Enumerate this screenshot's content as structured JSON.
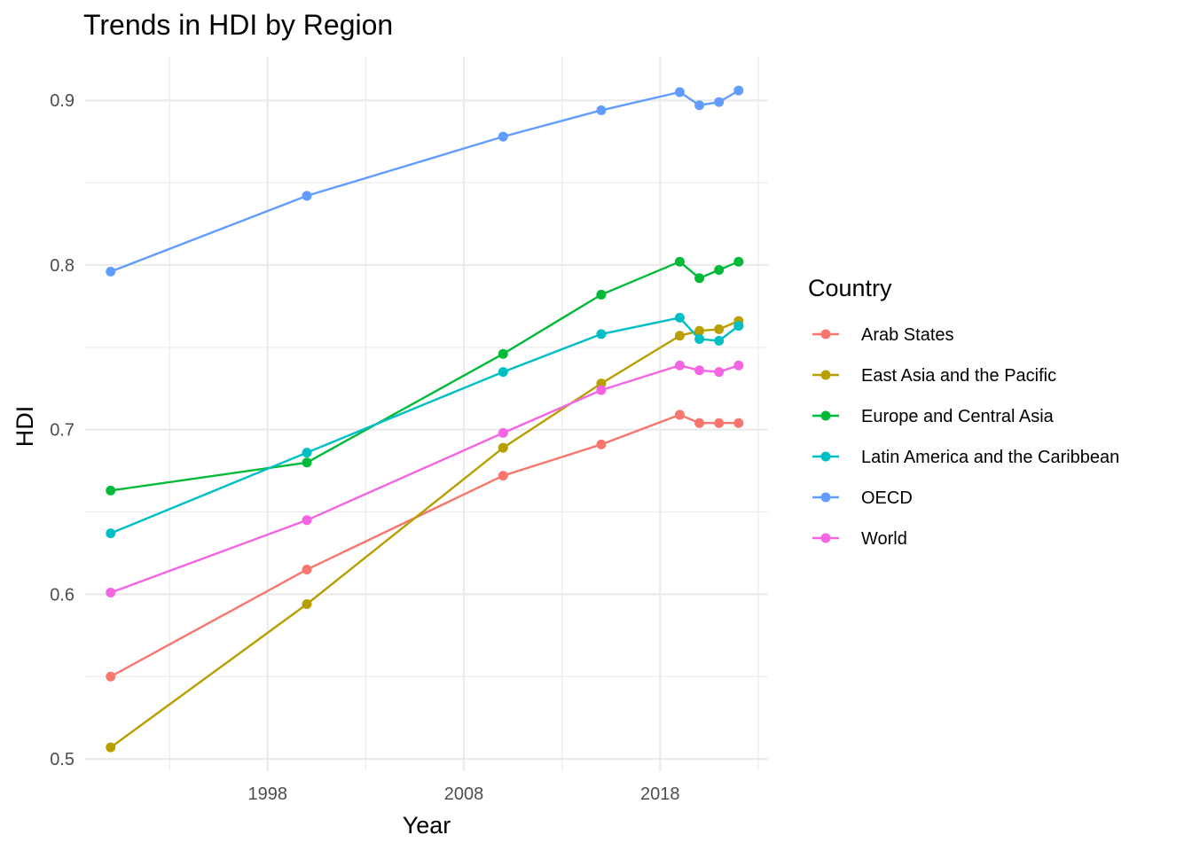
{
  "chart_data": {
    "type": "line",
    "title": "Trends in HDI by Region",
    "xlabel": "Year",
    "ylabel": "HDI",
    "x": [
      1990,
      2000,
      2010,
      2015,
      2019,
      2020,
      2021,
      2022
    ],
    "xlim": [
      1988.7,
      2023.5
    ],
    "ylim": [
      0.4925,
      0.9265
    ],
    "x_ticks": [
      1998,
      2008,
      2018
    ],
    "y_ticks": [
      0.5,
      0.6,
      0.7,
      0.8,
      0.9
    ],
    "x_tick_labels": [
      "1998",
      "2008",
      "2018"
    ],
    "y_tick_labels": [
      "0.5",
      "0.6",
      "0.7",
      "0.8",
      "0.9"
    ],
    "grid": true,
    "legend_title": "Country",
    "legend_position": "right",
    "series": [
      {
        "name": "Arab States",
        "color": "#F8766D",
        "values": [
          0.55,
          0.615,
          0.672,
          0.691,
          0.709,
          0.704,
          0.704,
          0.704
        ]
      },
      {
        "name": "East Asia and the Pacific",
        "color": "#B79F00",
        "values": [
          0.507,
          0.594,
          0.689,
          0.728,
          0.757,
          0.76,
          0.761,
          0.766
        ]
      },
      {
        "name": "Europe and Central Asia",
        "color": "#00BA38",
        "values": [
          0.663,
          0.68,
          0.746,
          0.782,
          0.802,
          0.792,
          0.797,
          0.802
        ]
      },
      {
        "name": "Latin America and the Caribbean",
        "color": "#00BFC4",
        "values": [
          0.637,
          0.686,
          0.735,
          0.758,
          0.768,
          0.755,
          0.754,
          0.763
        ]
      },
      {
        "name": "OECD",
        "color": "#619CFF",
        "values": [
          0.796,
          0.842,
          0.878,
          0.894,
          0.905,
          0.897,
          0.899,
          0.906
        ]
      },
      {
        "name": "World",
        "color": "#F564E3",
        "values": [
          0.601,
          0.645,
          0.698,
          0.724,
          0.739,
          0.736,
          0.735,
          0.739
        ]
      }
    ]
  }
}
